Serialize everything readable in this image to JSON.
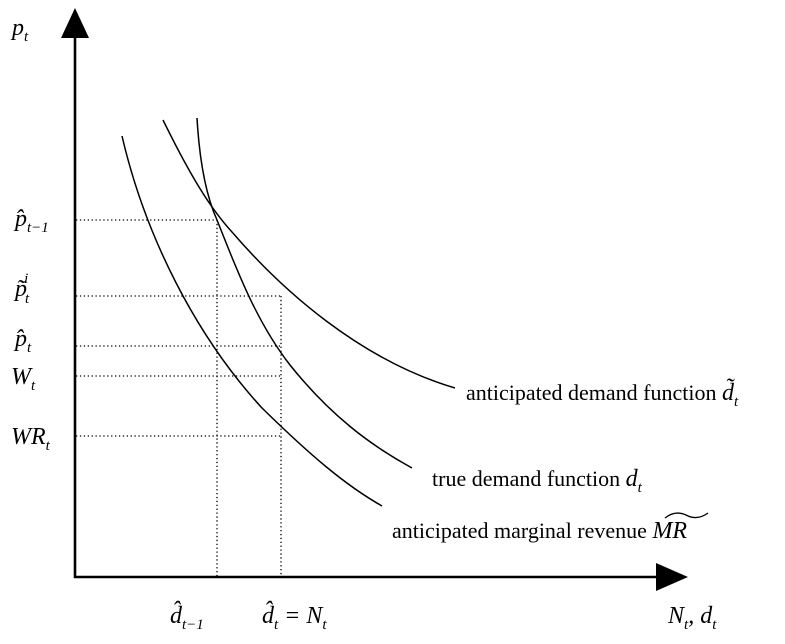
{
  "axes": {
    "y_label": "p",
    "y_label_sub": "t",
    "x_label": "N",
    "x_label_sub": "t",
    "x_label_sep": ", ",
    "x_label_2": "d",
    "x_label_2_sub": "t"
  },
  "y_ticks": [
    {
      "name": "p-hat-prev",
      "main": "p̂",
      "sub": "t−1"
    },
    {
      "name": "p-tilde-i",
      "main": "p̃",
      "sub": "t",
      "sup": "i"
    },
    {
      "name": "p-hat",
      "main": "p̂",
      "sub": "t"
    },
    {
      "name": "w",
      "main": "W",
      "sub": "t"
    },
    {
      "name": "wr",
      "main": "WR",
      "sub": "t"
    }
  ],
  "x_ticks": [
    {
      "name": "d-hat-prev",
      "main": "d̂",
      "sub": "t−1"
    },
    {
      "name": "d-hat-eq-n",
      "main": "d̂",
      "sub": "t",
      "eq": " = N",
      "eq_sub": "t"
    }
  ],
  "curves": {
    "anticipated_demand": {
      "text": "anticipated demand function ",
      "symbol": "d̃",
      "sub": "t"
    },
    "true_demand": {
      "text": "true demand function ",
      "symbol": "d",
      "sub": "t"
    },
    "anticipated_mr": {
      "text": "anticipated marginal revenue ",
      "symbol": "MR",
      "accent": "˜"
    }
  }
}
